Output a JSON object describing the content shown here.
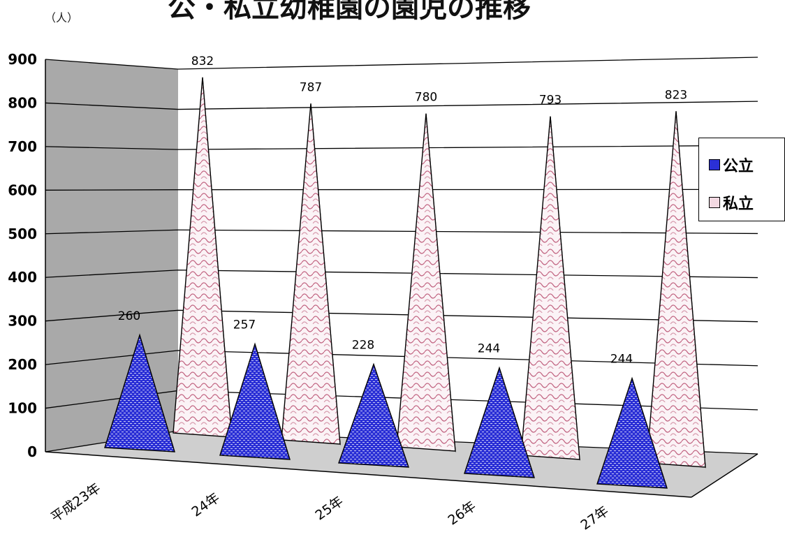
{
  "header": {
    "unit_label": "（人）",
    "title": "公・私立幼稚園の園児の推移"
  },
  "legend": {
    "items": [
      {
        "label": "公立",
        "color": "#2f35d8"
      },
      {
        "label": "私立",
        "color": "#e6b3c6"
      }
    ]
  },
  "chart_data": {
    "type": "bar",
    "categories": [
      "平成23年",
      "24年",
      "25年",
      "26年",
      "27年"
    ],
    "series": [
      {
        "name": "公立",
        "values": [
          260,
          257,
          228,
          244,
          244
        ]
      },
      {
        "name": "私立",
        "values": [
          832,
          787,
          780,
          793,
          823
        ]
      }
    ],
    "ylim": [
      0,
      900
    ],
    "yticks": [
      0,
      100,
      200,
      300,
      400,
      500,
      600,
      700,
      800,
      900
    ],
    "grid": true,
    "legend_position": "right"
  }
}
